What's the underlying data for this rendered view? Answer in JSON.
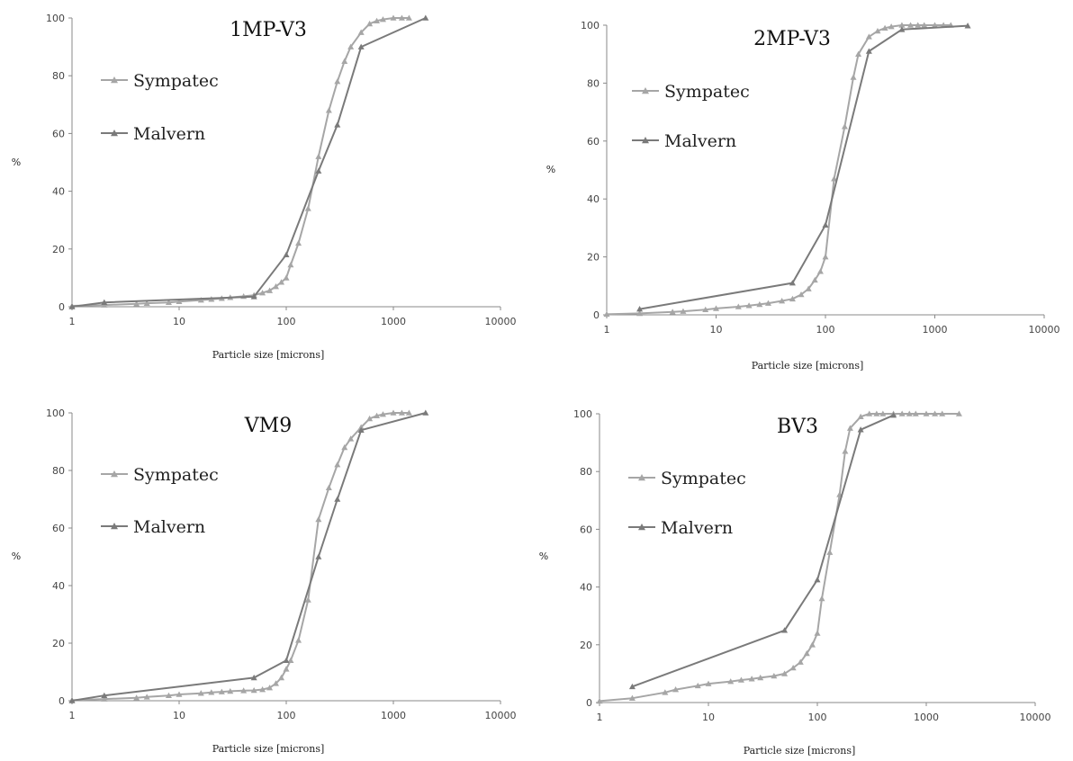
{
  "chart_data": [
    {
      "type": "line",
      "title": "1MP-V3",
      "xlabel": "Particle size [microns]",
      "ylabel": "%",
      "x_scale": "log",
      "xlim": [
        1,
        10000
      ],
      "ylim": [
        0,
        100
      ],
      "x_ticks": [
        "1",
        "10",
        "100",
        "1000",
        "10000"
      ],
      "y_ticks": [
        "0",
        "20",
        "40",
        "60",
        "80",
        "100"
      ],
      "legend_position": "top-left",
      "series": [
        {
          "name": "Sympatec",
          "color": "#a6a6a6",
          "x": [
            1,
            2,
            4,
            5,
            8,
            10,
            16,
            20,
            25,
            30,
            40,
            50,
            60,
            70,
            80,
            90,
            100,
            110,
            130,
            160,
            200,
            250,
            300,
            350,
            400,
            500,
            600,
            700,
            800,
            1000,
            1200,
            1400
          ],
          "y": [
            0.3,
            0.6,
            1,
            1.2,
            1.5,
            1.8,
            2.3,
            2.6,
            2.9,
            3.2,
            3.6,
            4,
            4.8,
            5.6,
            7,
            8.5,
            10,
            14.5,
            22,
            34,
            52,
            68,
            78,
            85,
            90,
            95,
            98,
            99,
            99.5,
            100,
            100,
            100
          ]
        },
        {
          "name": "Malvern",
          "color": "#7a7a7a",
          "x": [
            1,
            2,
            50,
            100,
            200,
            300,
            500,
            2000
          ],
          "y": [
            0,
            1.5,
            3.5,
            18,
            47,
            63,
            90,
            100
          ]
        }
      ]
    },
    {
      "type": "line",
      "title": "2MP-V3",
      "xlabel": "Particle size [microns]",
      "ylabel": "%",
      "x_scale": "log",
      "xlim": [
        1,
        10000
      ],
      "ylim": [
        0,
        100
      ],
      "x_ticks": [
        "1",
        "10",
        "100",
        "1000",
        "10000"
      ],
      "y_ticks": [
        "0",
        "20",
        "40",
        "60",
        "80",
        "100"
      ],
      "legend_position": "top-left",
      "series": [
        {
          "name": "Sympatec",
          "color": "#a6a6a6",
          "x": [
            1,
            2,
            4,
            5,
            8,
            10,
            16,
            20,
            25,
            30,
            40,
            50,
            60,
            70,
            80,
            90,
            100,
            120,
            150,
            180,
            200,
            250,
            300,
            350,
            400,
            500,
            600,
            700,
            800,
            1000,
            1200,
            1400
          ],
          "y": [
            0.2,
            0.5,
            1,
            1.2,
            1.8,
            2.2,
            2.8,
            3.2,
            3.6,
            4,
            4.8,
            5.5,
            7,
            9,
            12,
            15,
            20,
            47,
            65,
            82,
            90,
            96,
            98,
            99,
            99.5,
            100,
            100,
            100,
            100,
            100,
            100,
            100
          ]
        },
        {
          "name": "Malvern",
          "color": "#7a7a7a",
          "x": [
            2,
            50,
            100,
            250,
            500,
            2000
          ],
          "y": [
            2,
            11,
            31,
            91,
            98.5,
            99.8
          ]
        }
      ]
    },
    {
      "type": "line",
      "title": "VM9",
      "xlabel": "Particle size [microns]",
      "ylabel": "%",
      "x_scale": "log",
      "xlim": [
        1,
        10000
      ],
      "ylim": [
        0,
        100
      ],
      "x_ticks": [
        "1",
        "10",
        "100",
        "1000",
        "10000"
      ],
      "y_ticks": [
        "0",
        "20",
        "40",
        "60",
        "80",
        "100"
      ],
      "legend_position": "top-left",
      "series": [
        {
          "name": "Sympatec",
          "color": "#a6a6a6",
          "x": [
            1,
            2,
            4,
            5,
            8,
            10,
            16,
            20,
            25,
            30,
            40,
            50,
            60,
            70,
            80,
            90,
            100,
            110,
            130,
            160,
            200,
            250,
            300,
            350,
            400,
            500,
            600,
            700,
            800,
            1000,
            1200,
            1400
          ],
          "y": [
            0.2,
            0.6,
            1,
            1.3,
            1.8,
            2.2,
            2.6,
            2.9,
            3.1,
            3.3,
            3.5,
            3.6,
            3.9,
            4.5,
            6,
            8,
            11,
            14,
            21,
            35,
            63,
            74,
            82,
            88,
            91,
            95,
            98,
            99,
            99.5,
            100,
            100,
            100
          ]
        },
        {
          "name": "Malvern",
          "color": "#7a7a7a",
          "x": [
            1,
            2,
            50,
            100,
            200,
            300,
            500,
            2000
          ],
          "y": [
            0,
            1.8,
            8,
            14,
            50,
            70,
            94,
            100
          ]
        }
      ]
    },
    {
      "type": "line",
      "title": "BV3",
      "xlabel": "Particle size [microns]",
      "ylabel": "%",
      "x_scale": "log",
      "xlim": [
        1,
        10000
      ],
      "ylim": [
        0,
        100
      ],
      "x_ticks": [
        "1",
        "10",
        "100",
        "1000",
        "10000"
      ],
      "y_ticks": [
        "0",
        "20",
        "40",
        "60",
        "80",
        "100"
      ],
      "legend_position": "top-left",
      "series": [
        {
          "name": "Sympatec",
          "color": "#a6a6a6",
          "x": [
            1,
            2,
            4,
            5,
            8,
            10,
            16,
            20,
            25,
            30,
            40,
            50,
            60,
            70,
            80,
            90,
            100,
            110,
            130,
            160,
            180,
            200,
            250,
            300,
            350,
            400,
            500,
            600,
            700,
            800,
            1000,
            1200,
            1400,
            2000
          ],
          "y": [
            0.5,
            1.5,
            3.5,
            4.5,
            5.8,
            6.5,
            7.3,
            7.8,
            8.2,
            8.6,
            9.2,
            10,
            12,
            14,
            17,
            20,
            24,
            36,
            52,
            72,
            87,
            95,
            99,
            100,
            100,
            100,
            100,
            100,
            100,
            100,
            100,
            100,
            100,
            100
          ]
        },
        {
          "name": "Malvern",
          "color": "#7a7a7a",
          "x": [
            2,
            50,
            100,
            250,
            500
          ],
          "y": [
            5.5,
            25,
            42.5,
            94.5,
            99.5
          ]
        }
      ]
    }
  ]
}
